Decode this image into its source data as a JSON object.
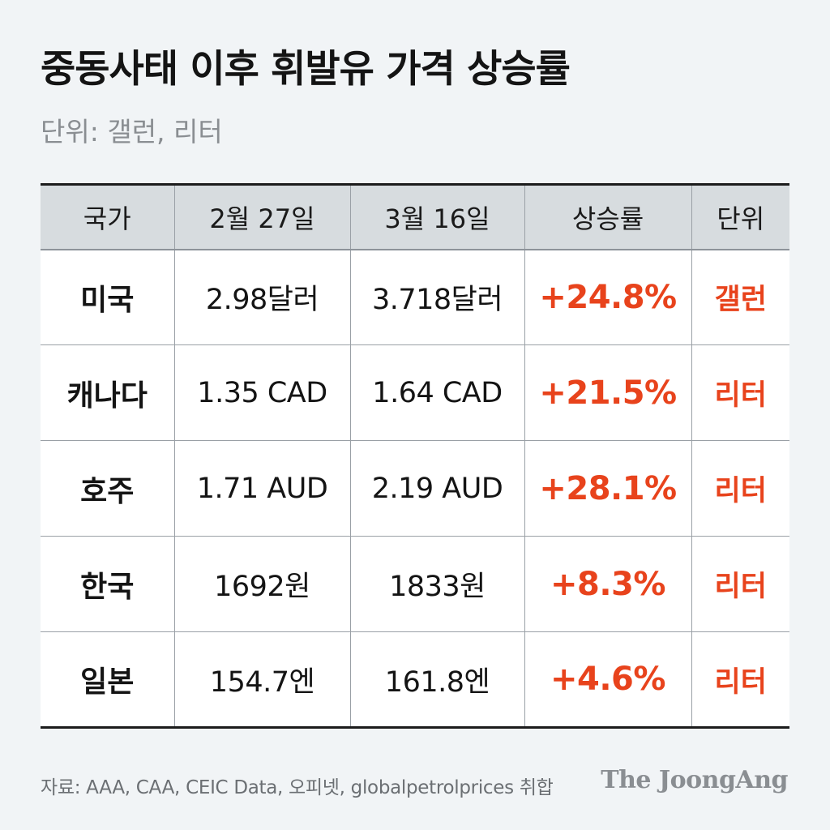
{
  "header": {
    "title": "중동사태 이후 휘발유 가격 상승률",
    "subtitle": "단위: 갤런, 리터"
  },
  "colors": {
    "accent": "#e8431c",
    "header_bg": "#d7dcdf",
    "page_bg": "#f1f4f6"
  },
  "chart_data": {
    "type": "table",
    "columns": [
      "국가",
      "2월 27일",
      "3월 16일",
      "상승률",
      "단위"
    ],
    "rows": [
      {
        "country": "미국",
        "feb27": "2.98달러",
        "mar16": "3.718달러",
        "rate": "+24.8%",
        "unit": "갤런"
      },
      {
        "country": "캐나다",
        "feb27": "1.35 CAD",
        "mar16": "1.64 CAD",
        "rate": "+21.5%",
        "unit": "리터"
      },
      {
        "country": "호주",
        "feb27": "1.71 AUD",
        "mar16": "2.19 AUD",
        "rate": "+28.1%",
        "unit": "리터"
      },
      {
        "country": "한국",
        "feb27": "1692원",
        "mar16": "1833원",
        "rate": "+8.3%",
        "unit": "리터"
      },
      {
        "country": "일본",
        "feb27": "154.7엔",
        "mar16": "161.8엔",
        "rate": "+4.6%",
        "unit": "리터"
      }
    ]
  },
  "footer": {
    "source": "자료: AAA, CAA, CEIC Data, 오피넷, globalpetrolprices 취합",
    "brand": "The JoongAng"
  }
}
